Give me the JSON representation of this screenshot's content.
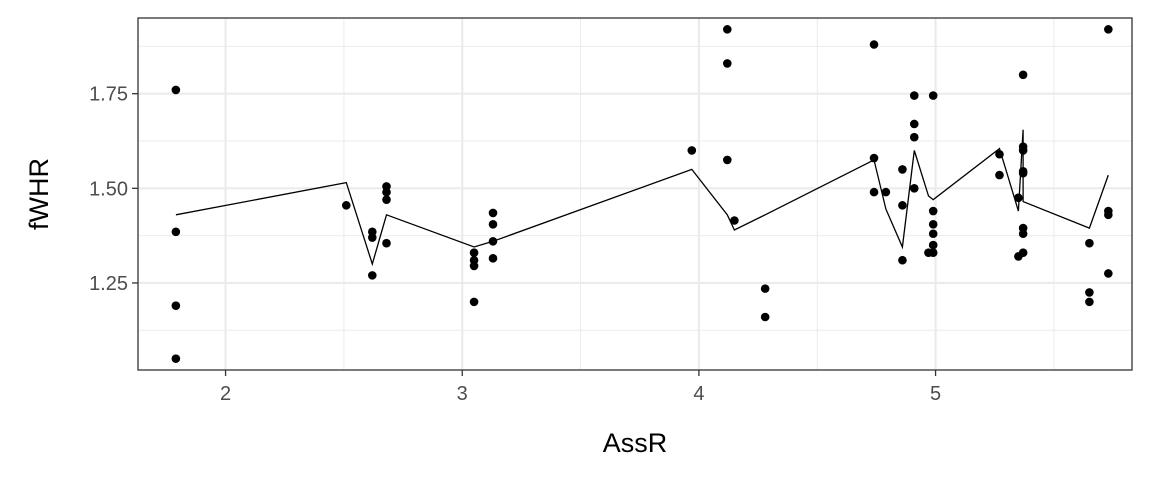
{
  "chart_data": {
    "type": "scatter",
    "xlabel": "AssR",
    "ylabel": "fWHR",
    "xlim": [
      1.63,
      5.83
    ],
    "ylim": [
      1.02,
      1.95
    ],
    "x_ticks": [
      2,
      3,
      4,
      5
    ],
    "x_tick_labels": [
      "2",
      "3",
      "4",
      "5"
    ],
    "y_ticks": [
      1.25,
      1.5,
      1.75
    ],
    "y_tick_labels": [
      "1.25",
      "1.50",
      "1.75"
    ],
    "x_minor_ticks": [
      2.5,
      3.5,
      4.5,
      5.5
    ],
    "y_minor_ticks": [
      1.125,
      1.375,
      1.625,
      1.875
    ],
    "grid": true,
    "legend": "none",
    "colors": {
      "points": "#000000",
      "line": "#000000",
      "grid": "#ebebeb",
      "panel_border": "#333333"
    },
    "points": [
      [
        1.79,
        1.76
      ],
      [
        1.79,
        1.385
      ],
      [
        1.79,
        1.19
      ],
      [
        1.79,
        1.05
      ],
      [
        2.51,
        1.455
      ],
      [
        2.62,
        1.385
      ],
      [
        2.62,
        1.37
      ],
      [
        2.62,
        1.27
      ],
      [
        2.68,
        1.505
      ],
      [
        2.68,
        1.49
      ],
      [
        2.68,
        1.47
      ],
      [
        2.68,
        1.355
      ],
      [
        3.05,
        1.33
      ],
      [
        3.05,
        1.31
      ],
      [
        3.05,
        1.295
      ],
      [
        3.05,
        1.2
      ],
      [
        3.13,
        1.435
      ],
      [
        3.13,
        1.405
      ],
      [
        3.13,
        1.36
      ],
      [
        3.13,
        1.315
      ],
      [
        3.97,
        1.6
      ],
      [
        4.12,
        1.92
      ],
      [
        4.12,
        1.83
      ],
      [
        4.12,
        1.575
      ],
      [
        4.15,
        1.415
      ],
      [
        4.28,
        1.235
      ],
      [
        4.28,
        1.16
      ],
      [
        4.74,
        1.88
      ],
      [
        4.74,
        1.58
      ],
      [
        4.74,
        1.49
      ],
      [
        4.79,
        1.49
      ],
      [
        4.86,
        1.55
      ],
      [
        4.86,
        1.455
      ],
      [
        4.86,
        1.31
      ],
      [
        4.91,
        1.745
      ],
      [
        4.91,
        1.67
      ],
      [
        4.91,
        1.635
      ],
      [
        4.91,
        1.5
      ],
      [
        4.97,
        1.33
      ],
      [
        4.99,
        1.745
      ],
      [
        4.99,
        1.44
      ],
      [
        4.99,
        1.405
      ],
      [
        4.99,
        1.38
      ],
      [
        4.99,
        1.35
      ],
      [
        4.99,
        1.33
      ],
      [
        5.27,
        1.59
      ],
      [
        5.27,
        1.535
      ],
      [
        5.35,
        1.475
      ],
      [
        5.35,
        1.32
      ],
      [
        5.37,
        1.8
      ],
      [
        5.37,
        1.61
      ],
      [
        5.37,
        1.6
      ],
      [
        5.37,
        1.545
      ],
      [
        5.37,
        1.54
      ],
      [
        5.37,
        1.395
      ],
      [
        5.37,
        1.38
      ],
      [
        5.37,
        1.33
      ],
      [
        5.65,
        1.355
      ],
      [
        5.65,
        1.225
      ],
      [
        5.65,
        1.2
      ],
      [
        5.73,
        1.92
      ],
      [
        5.73,
        1.44
      ],
      [
        5.73,
        1.43
      ],
      [
        5.73,
        1.275
      ]
    ],
    "line": [
      [
        1.79,
        1.43
      ],
      [
        2.51,
        1.515
      ],
      [
        2.62,
        1.3
      ],
      [
        2.68,
        1.43
      ],
      [
        3.05,
        1.345
      ],
      [
        3.13,
        1.36
      ],
      [
        3.97,
        1.55
      ],
      [
        4.12,
        1.43
      ],
      [
        4.15,
        1.39
      ],
      [
        4.28,
        1.43
      ],
      [
        4.74,
        1.575
      ],
      [
        4.79,
        1.445
      ],
      [
        4.86,
        1.345
      ],
      [
        4.91,
        1.6
      ],
      [
        4.97,
        1.48
      ],
      [
        4.99,
        1.47
      ],
      [
        5.27,
        1.605
      ],
      [
        5.35,
        1.44
      ],
      [
        5.37,
        1.655
      ],
      [
        5.37,
        1.465
      ],
      [
        5.65,
        1.395
      ],
      [
        5.73,
        1.535
      ]
    ]
  }
}
